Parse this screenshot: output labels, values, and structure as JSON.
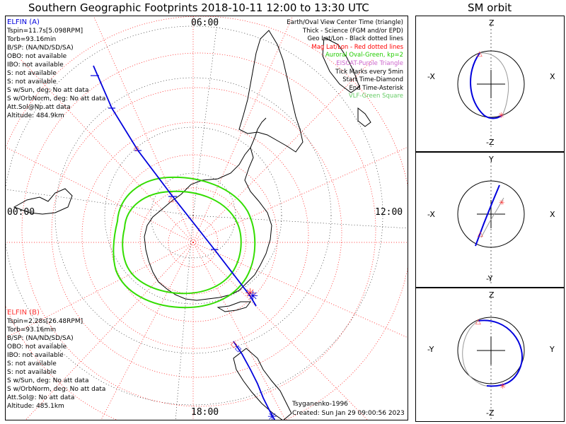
{
  "title": "Southern Geographic Footprints 2018-10-11 12:00 to 13:30 UTC",
  "sm_title": "SM orbit",
  "clock": {
    "top": "06:00",
    "left": "00:00",
    "right": "12:00",
    "bottom": "18:00"
  },
  "elfin_a": {
    "header": "ELFIN (A)",
    "lines": [
      "Tspin=11.7s[5.098RPM]",
      "Torb=93.16min",
      "B/SP: (NA/ND/SD/SA)",
      "OBO: not available",
      "IBO: not available",
      "S: not available",
      "S: not available",
      "S w/Sun, deg: No att data",
      "S w/OrbNorm, deg: No att data",
      "Att.Sol@Np.att data",
      "Altitude: 484.9km"
    ]
  },
  "elfin_b": {
    "header": "ELFIN (B)",
    "lines": [
      "Tspin=2.28s[26.48RPM]",
      "Torb=93.16min",
      "B/SP: (NA/ND/SD/SA)",
      "OBO: not available",
      "IBO: not available",
      "S: not available",
      "S: not available",
      "S w/Sun, deg: No att data",
      "S w/OrbNorm, deg: No att data",
      "Att.Sol@: No att data",
      "Altitude: 485.1km"
    ]
  },
  "legend": [
    {
      "text": "Earth/Oval View Center Time (triangle)",
      "color": "#000000"
    },
    {
      "text": "Thick - Science (FGM and/or EPD)",
      "color": "#000000"
    },
    {
      "text": "Geo Lat/Lon - Black dotted lines",
      "color": "#000000"
    },
    {
      "text": "Mag Lat/Lon - Red dotted lines",
      "color": "#ff0000"
    },
    {
      "text": "Auroral Oval-Green, kp=2",
      "color": "#22cc00"
    },
    {
      "text": "EISCAT-Purple Triangle",
      "color": "#cc66cc"
    },
    {
      "text": "Tick Marks every 5min",
      "color": "#000000"
    },
    {
      "text": "Start Time-Diamond",
      "color": "#000000"
    },
    {
      "text": "End Time-Asterisk",
      "color": "#000000"
    },
    {
      "text": "VLF-Green Square",
      "color": "#66cc66"
    }
  ],
  "footer": {
    "author": "Tsyganenko-1996",
    "created": "Created: Sun Jan 29 09:00:56 2023"
  },
  "sm_panels": [
    {
      "top": "Z",
      "bottom": "-Z",
      "left": "-X",
      "right": "X"
    },
    {
      "top": "Y",
      "bottom": "-Y",
      "left": "-X",
      "right": "X"
    },
    {
      "top": "Z",
      "bottom": "-Z",
      "left": "-Y",
      "right": "Y"
    }
  ],
  "colors": {
    "elfin_a": "#0000dd",
    "elfin_b": "#ff3333",
    "mag_grid": "#ff0000",
    "geo_grid": "#000000",
    "oval": "#33dd00"
  },
  "icons": [
    "diamond-start-marker",
    "asterisk-end-marker",
    "triangle-center-marker"
  ]
}
